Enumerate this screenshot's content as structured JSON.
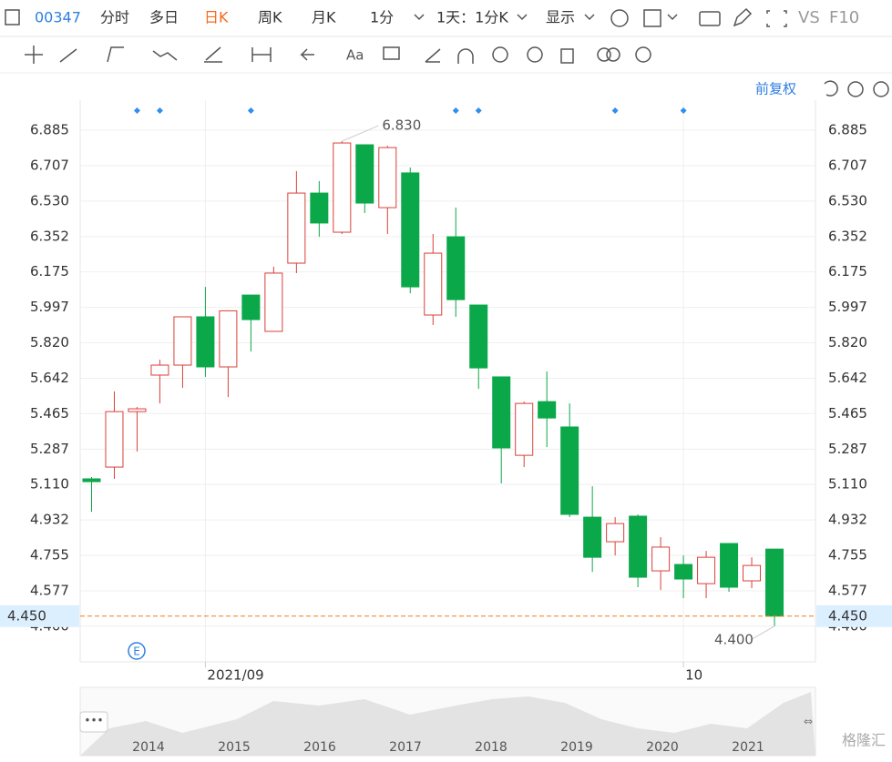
{
  "toolbar": {
    "code": "00347",
    "tabs": [
      "分时",
      "多日",
      "日K",
      "周K",
      "月K"
    ],
    "active_tab": 2,
    "interval": "1分",
    "range": "1天：1分K",
    "display": "显示",
    "vs": "VS",
    "f10": "F10"
  },
  "adjust": "前复权",
  "chart_data": {
    "type": "candlestick",
    "ylim": [
      4.221,
      7.136
    ],
    "xlim": [
      -0.5,
      31.8
    ],
    "yticks": [
      6.885,
      6.707,
      {
        "value": 6.53,
        "label": "6.530"
      },
      6.352,
      6.175,
      5.997,
      {
        "value": 5.82,
        "label": "5.820"
      },
      5.642,
      5.465,
      5.287,
      {
        "value": 5.11,
        "label": "5.110"
      },
      4.932,
      4.755,
      4.577,
      {
        "value": 4.4,
        "label": "4.400"
      }
    ],
    "xticks": [
      {
        "value": 5,
        "label": "2021/09"
      },
      {
        "value": 26,
        "label": "10"
      }
    ],
    "grid": true,
    "up_color": "#d9403a",
    "down_color": "#0ba84a",
    "open": [
      5.138,
      5.197,
      5.475,
      5.658,
      5.708,
      5.95,
      5.699,
      6.059,
      5.877,
      6.219,
      6.57,
      6.374,
      6.812,
      6.497,
      6.671,
      5.959,
      6.351,
      6.009,
      5.649,
      5.256,
      5.525,
      5.398,
      4.946,
      4.823,
      4.951,
      4.677,
      4.709,
      4.613,
      4.814,
      4.627,
      4.786
    ],
    "high": [
      5.147,
      5.576,
      5.498,
      5.735,
      5.95,
      6.1,
      5.98,
      6.059,
      6.201,
      6.68,
      6.63,
      6.83,
      6.812,
      6.807,
      6.698,
      6.365,
      6.497,
      6.009,
      5.649,
      5.525,
      5.676,
      5.516,
      5.101,
      4.946,
      4.96,
      4.846,
      4.754,
      4.777,
      4.814,
      4.745,
      4.786
    ],
    "low": [
      4.973,
      5.138,
      5.275,
      5.516,
      5.594,
      5.649,
      5.548,
      5.776,
      5.877,
      6.169,
      6.351,
      6.365,
      6.47,
      6.365,
      6.068,
      5.909,
      5.95,
      5.589,
      5.115,
      5.197,
      5.297,
      4.946,
      4.672,
      4.754,
      4.595,
      4.581,
      4.54,
      4.54,
      4.572,
      4.59,
      4.4
    ],
    "close": [
      5.124,
      5.475,
      5.489,
      5.708,
      5.95,
      5.699,
      5.98,
      5.936,
      6.169,
      6.57,
      6.42,
      6.821,
      6.52,
      6.798,
      6.1,
      6.269,
      6.036,
      5.694,
      5.293,
      5.516,
      5.443,
      4.96,
      4.745,
      4.914,
      4.645,
      4.796,
      4.636,
      4.745,
      4.595,
      4.704,
      4.45
    ],
    "event_markers": [
      2,
      3,
      7,
      16,
      17,
      23,
      26
    ],
    "annotations": [
      {
        "text": "6.830",
        "value": 6.83,
        "index": 11
      },
      {
        "text": "4.400",
        "value": 4.4,
        "index": 30
      }
    ],
    "last_price": {
      "value": 4.45,
      "label": "4.450"
    },
    "navigator_years": [
      "2014",
      "2015",
      "2016",
      "2017",
      "2018",
      "2019",
      "2020",
      "2021"
    ]
  },
  "watermark": "格隆汇"
}
